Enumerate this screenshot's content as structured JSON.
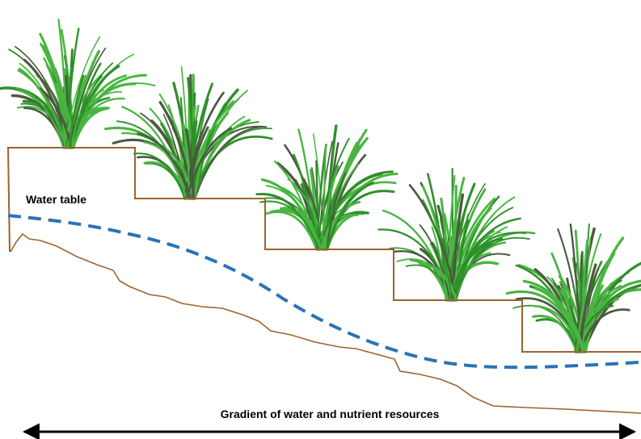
{
  "labels": {
    "water_table": "Water table",
    "gradient": "Gradient of water and nutrient resources"
  }
}
